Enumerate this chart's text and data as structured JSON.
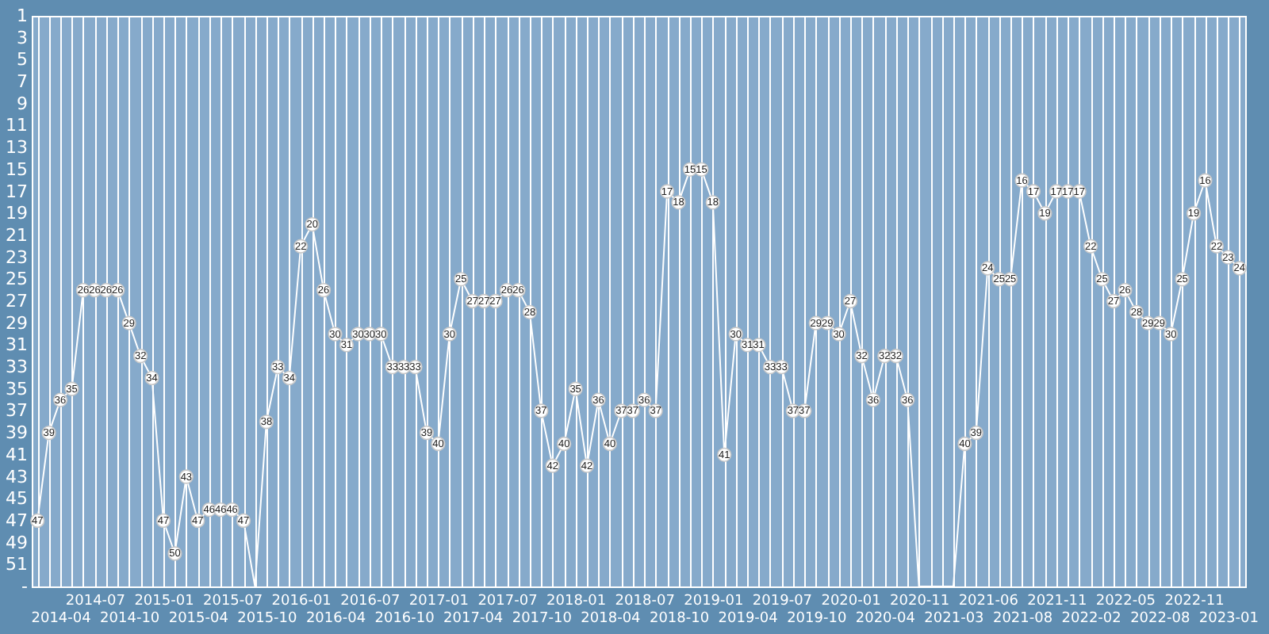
{
  "chart_data": {
    "type": "line",
    "color": "#ffffff",
    "marker": "circle",
    "grid": "x",
    "categories": [
      null,
      null,
      "2014-04",
      null,
      null,
      "2014-07",
      null,
      null,
      "2014-10",
      null,
      null,
      "2015-01",
      null,
      null,
      "2015-04",
      null,
      null,
      "2015-07",
      null,
      null,
      "2015-10",
      null,
      null,
      "2016-01",
      null,
      null,
      "2016-04",
      null,
      null,
      "2016-07",
      null,
      null,
      "2016-10",
      null,
      null,
      "2017-01",
      null,
      null,
      "2017-04",
      null,
      null,
      "2017-07",
      null,
      null,
      "2017-10",
      null,
      null,
      "2018-01",
      null,
      null,
      "2018-04",
      null,
      null,
      "2018-07",
      null,
      null,
      "2018-10",
      null,
      null,
      "2019-01",
      null,
      null,
      "2019-04",
      null,
      null,
      "2019-07",
      null,
      null,
      "2019-10",
      null,
      null,
      "2020-01",
      null,
      null,
      "2020-04",
      null,
      null,
      "2020-11",
      null,
      null,
      "2021-03",
      null,
      null,
      "2021-06",
      null,
      null,
      "2021-08",
      null,
      null,
      "2021-11",
      null,
      null,
      "2022-02",
      null,
      null,
      "2022-05",
      null,
      null,
      "2022-08",
      null,
      null,
      "2022-11",
      null,
      null,
      "2023-01",
      null
    ],
    "values": [
      47,
      39,
      36,
      35,
      26,
      26,
      26,
      26,
      29,
      32,
      34,
      47,
      50,
      43,
      47,
      46,
      46,
      46,
      47,
      53,
      38,
      33,
      34,
      22,
      20,
      26,
      30,
      31,
      30,
      30,
      30,
      33,
      33,
      33,
      39,
      40,
      30,
      25,
      27,
      27,
      27,
      26,
      26,
      28,
      37,
      42,
      40,
      35,
      42,
      36,
      40,
      37,
      37,
      36,
      37,
      17,
      18,
      15,
      15,
      18,
      41,
      30,
      31,
      31,
      33,
      33,
      37,
      37,
      29,
      29,
      30,
      27,
      32,
      36,
      32,
      32,
      36,
      53,
      53,
      53,
      53,
      40,
      39,
      24,
      25,
      25,
      16,
      17,
      19,
      17,
      17,
      17,
      22,
      25,
      27,
      26,
      28,
      29,
      29,
      30,
      25,
      19,
      16,
      22,
      23,
      24
    ],
    "value_labels": [
      "47",
      "39",
      "36",
      "35",
      "26",
      "26",
      "26",
      "26",
      "29",
      "32",
      "34",
      "47",
      "50",
      "43",
      "47",
      "46",
      "46",
      "46",
      "47",
      null,
      "38",
      "33",
      "34",
      "22",
      "20",
      "26",
      "30",
      "31",
      "30",
      "30",
      "30",
      "33",
      "33",
      "33",
      "39",
      "40",
      "30",
      "25",
      "27",
      "27",
      "27",
      "26",
      "26",
      "28",
      "37",
      "42",
      "40",
      "35",
      "42",
      "36",
      "40",
      "37",
      "37",
      "36",
      "37",
      "17",
      "18",
      "15",
      "15",
      "18",
      "41",
      "30",
      "31",
      "31",
      "33",
      "33",
      "37",
      "37",
      "29",
      "29",
      "30",
      "27",
      "32",
      "36",
      "32",
      "32",
      "36",
      null,
      null,
      null,
      null,
      "40",
      "39",
      "24",
      "25",
      "25",
      "16",
      "17",
      "19",
      "17",
      "17",
      "17",
      "22",
      "25",
      "27",
      "26",
      "28",
      "29",
      "29",
      "30",
      "25",
      "19",
      "16",
      "22",
      "23",
      "24"
    ],
    "ylim": [
      53,
      1
    ],
    "yticks": [
      1,
      3,
      5,
      7,
      9,
      11,
      13,
      15,
      17,
      19,
      21,
      23,
      25,
      27,
      29,
      31,
      33,
      35,
      37,
      39,
      41,
      43,
      45,
      47,
      49,
      51,
      {
        "value": 53,
        "label": "-"
      }
    ]
  }
}
